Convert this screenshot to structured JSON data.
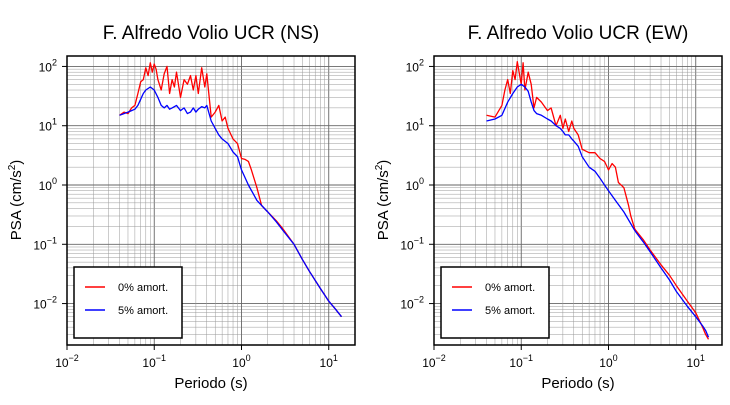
{
  "chart_data": [
    {
      "type": "line",
      "title": "F. Alfredo Volio UCR (NS)",
      "xlabel": "Periodo (s)",
      "ylabel_main": "PSA (cm/s",
      "ylabel_sup": "2",
      "ylabel_close": ")",
      "xscale": "log",
      "yscale": "log",
      "xlim": [
        0.01,
        20
      ],
      "ylim": [
        0.002,
        150
      ],
      "grid": true,
      "legend_position": "bottom-left",
      "x_ticks": [
        {
          "base": "10",
          "exp": "−2",
          "value": 0.01
        },
        {
          "base": "10",
          "exp": "−1",
          "value": 0.1
        },
        {
          "base": "10",
          "exp": "0",
          "value": 1
        },
        {
          "base": "10",
          "exp": "1",
          "value": 10
        }
      ],
      "y_ticks": [
        {
          "base": "10",
          "exp": "−2",
          "value": 0.01
        },
        {
          "base": "10",
          "exp": "−1",
          "value": 0.1
        },
        {
          "base": "10",
          "exp": "0",
          "value": 1
        },
        {
          "base": "10",
          "exp": "1",
          "value": 10
        },
        {
          "base": "10",
          "exp": "2",
          "value": 100
        }
      ],
      "series": [
        {
          "name": "0% amort.",
          "color": "#ff0000",
          "x": [
            0.04,
            0.045,
            0.05,
            0.055,
            0.06,
            0.065,
            0.07,
            0.075,
            0.08,
            0.085,
            0.09,
            0.095,
            0.1,
            0.105,
            0.11,
            0.12,
            0.13,
            0.14,
            0.15,
            0.16,
            0.17,
            0.18,
            0.2,
            0.22,
            0.24,
            0.26,
            0.28,
            0.3,
            0.32,
            0.35,
            0.38,
            0.4,
            0.45,
            0.5,
            0.55,
            0.6,
            0.65,
            0.7,
            0.8,
            0.9,
            1.0,
            1.1,
            1.2,
            1.3,
            1.5,
            1.7,
            2.0,
            2.5,
            3,
            4,
            5,
            6,
            8,
            10,
            12,
            14
          ],
          "y": [
            15,
            17,
            16,
            20,
            22,
            35,
            55,
            60,
            95,
            70,
            115,
            80,
            110,
            90,
            60,
            40,
            75,
            100,
            35,
            60,
            45,
            80,
            30,
            60,
            50,
            70,
            40,
            70,
            35,
            95,
            45,
            75,
            14,
            17,
            22,
            12,
            14,
            9,
            6,
            5,
            2.8,
            2.7,
            2.5,
            1.8,
            0.9,
            0.45,
            0.35,
            0.25,
            0.18,
            0.1,
            0.055,
            0.035,
            0.018,
            0.011,
            0.008,
            0.006
          ]
        },
        {
          "name": "5% amort.",
          "color": "#0000ff",
          "x": [
            0.04,
            0.045,
            0.05,
            0.055,
            0.06,
            0.065,
            0.07,
            0.075,
            0.08,
            0.09,
            0.1,
            0.11,
            0.12,
            0.13,
            0.14,
            0.15,
            0.16,
            0.18,
            0.2,
            0.22,
            0.24,
            0.26,
            0.28,
            0.3,
            0.32,
            0.35,
            0.38,
            0.4,
            0.45,
            0.5,
            0.55,
            0.6,
            0.7,
            0.8,
            0.9,
            1.0,
            1.2,
            1.5,
            2.0,
            2.5,
            3,
            4,
            5,
            6,
            8,
            10,
            12,
            14
          ],
          "y": [
            15,
            16,
            17,
            18,
            19,
            22,
            28,
            35,
            40,
            45,
            40,
            30,
            22,
            20,
            22,
            19,
            20,
            22,
            18,
            20,
            16,
            17,
            20,
            17,
            19,
            21,
            20,
            22,
            12,
            9,
            7,
            6,
            5,
            3.6,
            3.0,
            1.8,
            1.0,
            0.55,
            0.35,
            0.24,
            0.17,
            0.1,
            0.055,
            0.035,
            0.018,
            0.011,
            0.008,
            0.006
          ]
        }
      ]
    },
    {
      "type": "line",
      "title": "F. Alfredo Volio UCR (EW)",
      "xlabel": "Periodo (s)",
      "ylabel_main": "PSA (cm/s",
      "ylabel_sup": "2",
      "ylabel_close": ")",
      "xscale": "log",
      "yscale": "log",
      "xlim": [
        0.01,
        20
      ],
      "ylim": [
        0.002,
        150
      ],
      "grid": true,
      "legend_position": "bottom-left",
      "x_ticks": [
        {
          "base": "10",
          "exp": "−2",
          "value": 0.01
        },
        {
          "base": "10",
          "exp": "−1",
          "value": 0.1
        },
        {
          "base": "10",
          "exp": "0",
          "value": 1
        },
        {
          "base": "10",
          "exp": "1",
          "value": 10
        }
      ],
      "y_ticks": [
        {
          "base": "10",
          "exp": "−2",
          "value": 0.01
        },
        {
          "base": "10",
          "exp": "−1",
          "value": 0.1
        },
        {
          "base": "10",
          "exp": "0",
          "value": 1
        },
        {
          "base": "10",
          "exp": "1",
          "value": 10
        },
        {
          "base": "10",
          "exp": "2",
          "value": 100
        }
      ],
      "series": [
        {
          "name": "0% amort.",
          "color": "#ff0000",
          "x": [
            0.04,
            0.05,
            0.06,
            0.065,
            0.07,
            0.075,
            0.08,
            0.085,
            0.09,
            0.1,
            0.105,
            0.11,
            0.12,
            0.13,
            0.14,
            0.15,
            0.17,
            0.2,
            0.22,
            0.25,
            0.28,
            0.3,
            0.32,
            0.35,
            0.38,
            0.4,
            0.45,
            0.5,
            0.6,
            0.7,
            0.8,
            0.9,
            1.0,
            1.1,
            1.2,
            1.3,
            1.5,
            1.7,
            1.8,
            2.0,
            2.5,
            3,
            4,
            5,
            6,
            8,
            10,
            12,
            13,
            14
          ],
          "y": [
            15,
            14,
            22,
            40,
            60,
            35,
            85,
            60,
            120,
            50,
            115,
            40,
            80,
            50,
            20,
            30,
            25,
            18,
            20,
            10,
            15,
            9,
            13,
            8,
            12,
            9,
            7,
            4,
            3.5,
            3.5,
            2.8,
            2.5,
            1.8,
            2.3,
            2.0,
            1.1,
            0.9,
            0.45,
            0.3,
            0.18,
            0.12,
            0.08,
            0.045,
            0.03,
            0.02,
            0.011,
            0.007,
            0.004,
            0.003,
            0.0025
          ]
        },
        {
          "name": "5% amort.",
          "color": "#0000ff",
          "x": [
            0.04,
            0.05,
            0.06,
            0.07,
            0.08,
            0.09,
            0.1,
            0.11,
            0.12,
            0.13,
            0.14,
            0.15,
            0.17,
            0.2,
            0.22,
            0.25,
            0.28,
            0.3,
            0.32,
            0.35,
            0.38,
            0.4,
            0.45,
            0.5,
            0.6,
            0.7,
            0.8,
            0.9,
            1.0,
            1.2,
            1.5,
            2.0,
            2.5,
            3,
            4,
            5,
            6,
            8,
            10,
            12,
            13,
            14
          ],
          "y": [
            12,
            13,
            15,
            25,
            35,
            45,
            50,
            45,
            38,
            25,
            18,
            16,
            15,
            13,
            12,
            10,
            9,
            8,
            7,
            7,
            6,
            5.5,
            4.5,
            3.0,
            2.0,
            1.7,
            1.3,
            1.0,
            0.8,
            0.55,
            0.35,
            0.17,
            0.11,
            0.075,
            0.04,
            0.025,
            0.016,
            0.009,
            0.006,
            0.0042,
            0.0035,
            0.0027
          ]
        }
      ]
    }
  ]
}
